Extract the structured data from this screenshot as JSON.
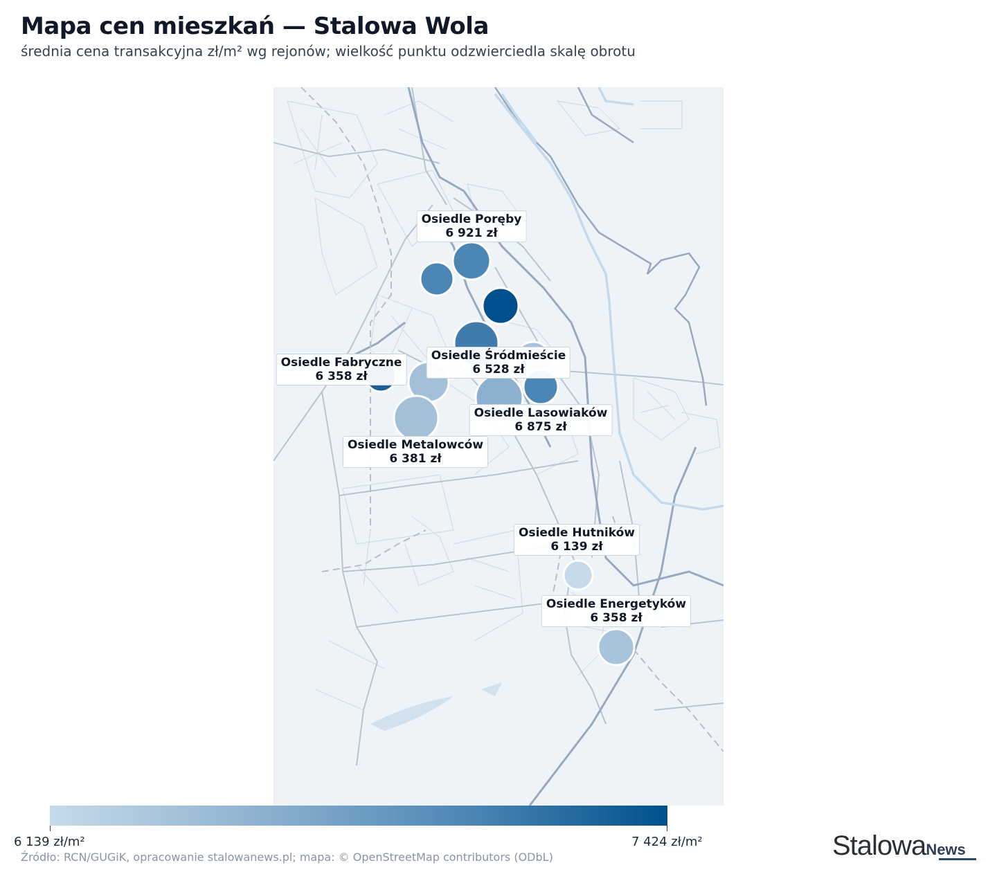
{
  "title": "Mapa cen mieszkań — Stalowa Wola",
  "subtitle": "średnia cena transakcyjna zł/m² wg rejonów; wielkość punktu odzwierciedla skalę obrotu",
  "labels": [
    {
      "name": "Osiedle Poręby",
      "price": "6 921 zł"
    },
    {
      "name": "Osiedle Fabryczne",
      "price": "6 358 zł"
    },
    {
      "name": "Osiedle Śródmieście",
      "price": "6 528 zł"
    },
    {
      "name": "Osiedle Lasowiaków",
      "price": "6 875 zł"
    },
    {
      "name": "Osiedle Metalowców",
      "price": "6 381 zł"
    },
    {
      "name": "Osiedle Hutników",
      "price": "6 139 zł"
    },
    {
      "name": "Osiedle Energetyków",
      "price": "6 358 zł"
    }
  ],
  "colorbar": {
    "min_label": "6 139 zł/m²",
    "max_label": "7 424 zł/m²",
    "min_color": "#c6daea",
    "max_color": "#00508d"
  },
  "source": "Źródło: RCN/GUGiK, opracowanie stalowanews.pl; mapa: © OpenStreetMap contributors (ODbL)",
  "logo": {
    "part1": "Stalowa",
    "part2": "News"
  }
}
